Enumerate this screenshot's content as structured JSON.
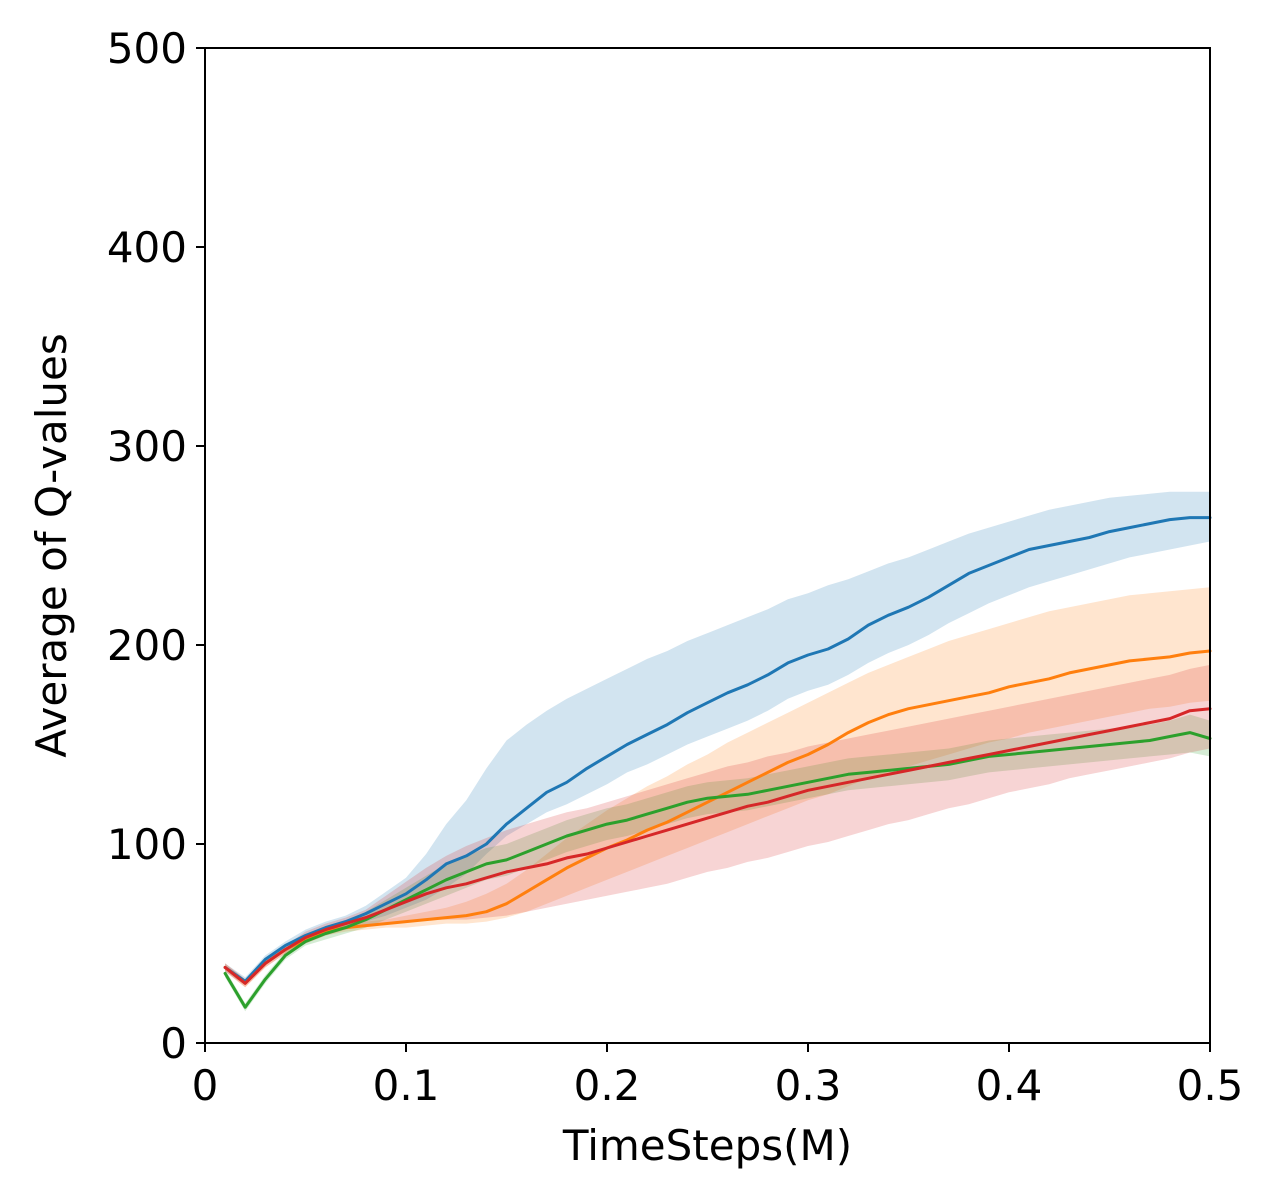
{
  "chart_data": {
    "type": "line",
    "title": "",
    "xlabel": "TimeSteps(M)",
    "ylabel": "Average of Q-values",
    "xlim": [
      0,
      0.5
    ],
    "ylim": [
      0,
      500
    ],
    "xticks": [
      0,
      0.1,
      0.2,
      0.3,
      0.4,
      0.5
    ],
    "xtick_labels": [
      "0",
      "0.1",
      "0.2",
      "0.3",
      "0.4",
      "0.5"
    ],
    "yticks": [
      0,
      100,
      200,
      300,
      400,
      500
    ],
    "ytick_labels": [
      "0",
      "100",
      "200",
      "300",
      "400",
      "500"
    ],
    "grid": false,
    "legend": null,
    "x": [
      0.01,
      0.02,
      0.03,
      0.04,
      0.05,
      0.06,
      0.07,
      0.08,
      0.09,
      0.1,
      0.11,
      0.12,
      0.13,
      0.14,
      0.15,
      0.16,
      0.17,
      0.18,
      0.19,
      0.2,
      0.21,
      0.22,
      0.23,
      0.24,
      0.25,
      0.26,
      0.27,
      0.28,
      0.29,
      0.3,
      0.31,
      0.32,
      0.33,
      0.34,
      0.35,
      0.36,
      0.37,
      0.38,
      0.39,
      0.4,
      0.41,
      0.42,
      0.43,
      0.44,
      0.45,
      0.46,
      0.47,
      0.48,
      0.49,
      0.5
    ],
    "series": [
      {
        "name": "blue",
        "color": "#1f77b4",
        "values": [
          38,
          31,
          42,
          49,
          54,
          58,
          61,
          65,
          70,
          75,
          82,
          90,
          94,
          100,
          110,
          118,
          126,
          131,
          138,
          144,
          150,
          155,
          160,
          166,
          171,
          176,
          180,
          185,
          191,
          195,
          198,
          203,
          210,
          215,
          219,
          224,
          230,
          236,
          240,
          244,
          248,
          250,
          252,
          254,
          257,
          259,
          261,
          263,
          264,
          264
        ],
        "lower": [
          36,
          29,
          40,
          46,
          51,
          55,
          58,
          61,
          64,
          68,
          72,
          78,
          85,
          95,
          104,
          110,
          116,
          120,
          125,
          130,
          136,
          140,
          145,
          150,
          154,
          158,
          162,
          167,
          173,
          177,
          180,
          185,
          191,
          196,
          200,
          205,
          211,
          216,
          221,
          225,
          229,
          232,
          235,
          238,
          241,
          244,
          246,
          248,
          250,
          252
        ],
        "upper": [
          40,
          33,
          44,
          51,
          57,
          61,
          64,
          69,
          76,
          83,
          95,
          110,
          122,
          138,
          152,
          160,
          167,
          173,
          178,
          183,
          188,
          193,
          197,
          202,
          206,
          210,
          214,
          218,
          223,
          226,
          230,
          233,
          237,
          241,
          244,
          248,
          252,
          256,
          259,
          262,
          265,
          268,
          270,
          272,
          274,
          275,
          276,
          277,
          277,
          277
        ]
      },
      {
        "name": "orange",
        "color": "#ff7f0e",
        "values": [
          38,
          30,
          40,
          47,
          52,
          56,
          58,
          59,
          60,
          61,
          62,
          63,
          64,
          66,
          70,
          76,
          82,
          88,
          93,
          98,
          102,
          107,
          111,
          116,
          121,
          126,
          131,
          136,
          141,
          145,
          150,
          156,
          161,
          165,
          168,
          170,
          172,
          174,
          176,
          179,
          181,
          183,
          186,
          188,
          190,
          192,
          193,
          194,
          196,
          197
        ],
        "lower": [
          36,
          28,
          38,
          45,
          50,
          54,
          56,
          57,
          58,
          58,
          59,
          60,
          60,
          61,
          63,
          66,
          70,
          74,
          78,
          82,
          86,
          90,
          94,
          98,
          102,
          106,
          110,
          114,
          118,
          122,
          125,
          129,
          133,
          136,
          139,
          142,
          145,
          148,
          151,
          153,
          156,
          158,
          160,
          162,
          164,
          166,
          168,
          169,
          171,
          172
        ],
        "upper": [
          40,
          32,
          42,
          49,
          54,
          58,
          60,
          61,
          62,
          64,
          66,
          68,
          71,
          75,
          80,
          87,
          95,
          103,
          110,
          117,
          123,
          129,
          134,
          140,
          145,
          151,
          156,
          161,
          166,
          171,
          176,
          181,
          186,
          190,
          194,
          198,
          202,
          205,
          208,
          211,
          214,
          217,
          219,
          221,
          223,
          225,
          226,
          227,
          228,
          229
        ]
      },
      {
        "name": "green",
        "color": "#2ca02c",
        "values": [
          35,
          18,
          32,
          44,
          51,
          55,
          58,
          62,
          67,
          72,
          77,
          82,
          86,
          90,
          92,
          96,
          100,
          104,
          107,
          110,
          112,
          115,
          118,
          121,
          123,
          124,
          125,
          127,
          129,
          131,
          133,
          135,
          136,
          137,
          138,
          139,
          140,
          142,
          144,
          145,
          146,
          147,
          148,
          149,
          150,
          151,
          152,
          154,
          156,
          153
        ],
        "lower": [
          33,
          16,
          30,
          42,
          49,
          52,
          55,
          58,
          62,
          66,
          70,
          74,
          78,
          82,
          84,
          88,
          92,
          96,
          99,
          102,
          104,
          107,
          110,
          113,
          115,
          116,
          117,
          119,
          121,
          123,
          125,
          127,
          128,
          129,
          130,
          131,
          132,
          134,
          136,
          137,
          138,
          139,
          140,
          141,
          142,
          143,
          144,
          145,
          146,
          144
        ],
        "upper": [
          37,
          20,
          34,
          46,
          53,
          58,
          61,
          66,
          72,
          78,
          84,
          90,
          94,
          98,
          100,
          104,
          108,
          112,
          115,
          118,
          120,
          123,
          126,
          129,
          131,
          132,
          133,
          135,
          137,
          139,
          141,
          143,
          144,
          145,
          146,
          147,
          148,
          150,
          152,
          153,
          154,
          155,
          156,
          157,
          158,
          159,
          160,
          162,
          165,
          162
        ]
      },
      {
        "name": "red",
        "color": "#d62728",
        "values": [
          38,
          30,
          40,
          47,
          53,
          57,
          60,
          63,
          67,
          71,
          75,
          78,
          80,
          83,
          86,
          88,
          90,
          93,
          95,
          98,
          101,
          104,
          107,
          110,
          113,
          116,
          119,
          121,
          124,
          127,
          129,
          131,
          133,
          135,
          137,
          139,
          141,
          143,
          145,
          147,
          149,
          151,
          153,
          155,
          157,
          159,
          161,
          163,
          167,
          168
        ],
        "lower": [
          36,
          28,
          38,
          45,
          50,
          54,
          57,
          59,
          60,
          61,
          62,
          62,
          62,
          63,
          64,
          66,
          68,
          70,
          72,
          74,
          76,
          78,
          80,
          83,
          86,
          88,
          91,
          93,
          96,
          99,
          101,
          104,
          107,
          110,
          112,
          115,
          118,
          120,
          123,
          126,
          128,
          130,
          133,
          135,
          137,
          139,
          141,
          143,
          146,
          148
        ],
        "upper": [
          40,
          32,
          42,
          49,
          56,
          60,
          63,
          67,
          74,
          81,
          88,
          94,
          99,
          103,
          107,
          110,
          113,
          116,
          118,
          121,
          124,
          127,
          130,
          133,
          136,
          139,
          141,
          144,
          146,
          149,
          151,
          153,
          155,
          157,
          159,
          161,
          163,
          165,
          167,
          169,
          171,
          173,
          175,
          177,
          179,
          181,
          183,
          185,
          188,
          190
        ]
      }
    ]
  }
}
